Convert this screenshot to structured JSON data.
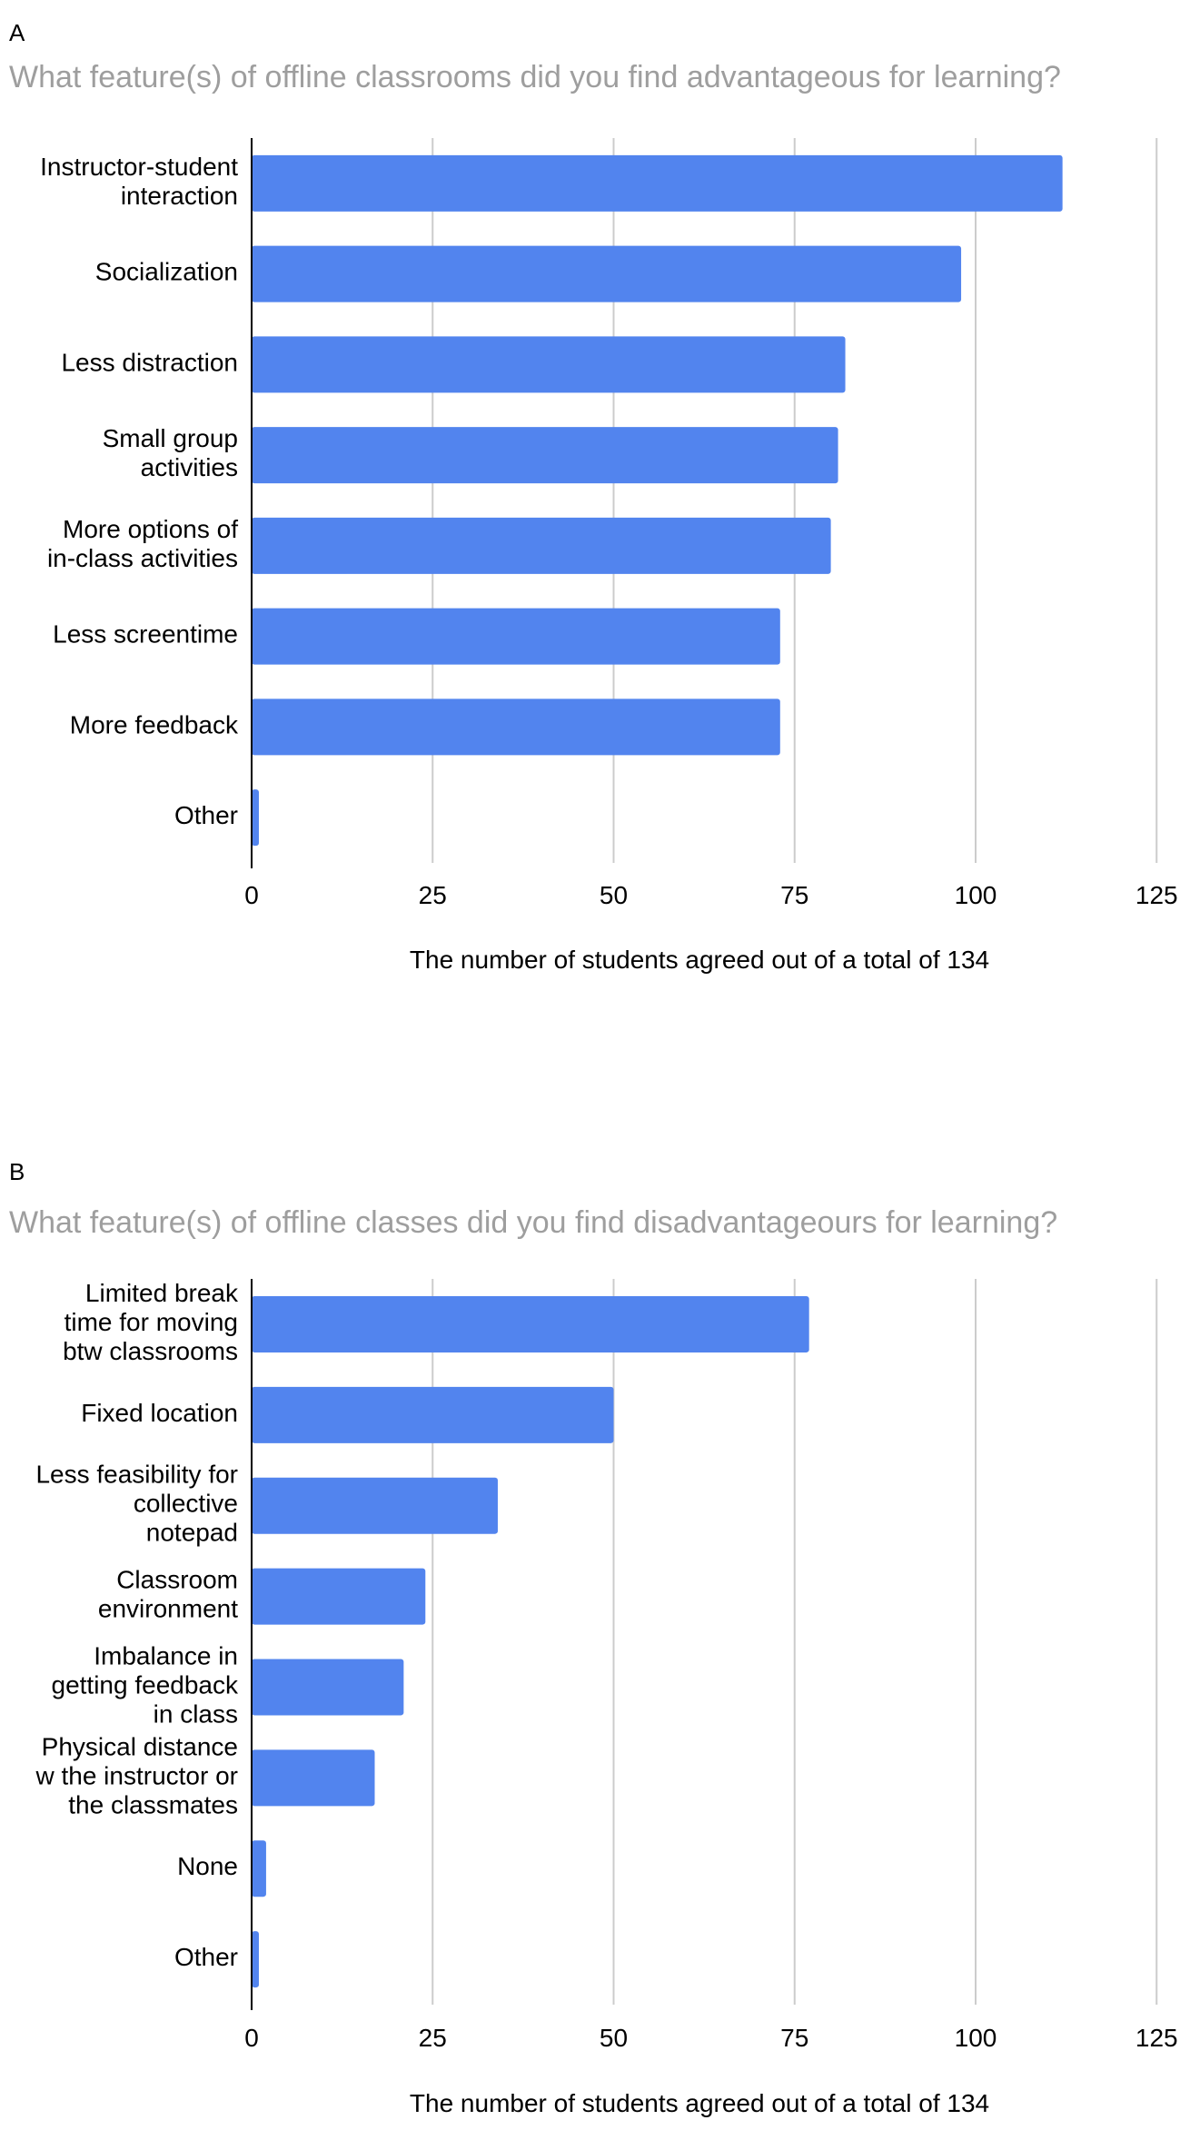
{
  "chart_data": [
    {
      "type": "bar",
      "orientation": "horizontal",
      "panel": "A",
      "title": "What feature(s) of offline classrooms did you find advantageous for learning?",
      "categories": [
        [
          "Instructor-student",
          "interaction"
        ],
        [
          "Socialization"
        ],
        [
          "Less distraction"
        ],
        [
          "Small group",
          "activities"
        ],
        [
          "More options of",
          "in-class activities"
        ],
        [
          "Less screentime"
        ],
        [
          "More feedback"
        ],
        [
          "Other"
        ]
      ],
      "values": [
        112,
        98,
        82,
        81,
        80,
        73,
        73,
        1
      ],
      "xlabel": "The number of students agreed out of a total of 134",
      "ylabel": "",
      "xlim": [
        0,
        125
      ],
      "ticks": [
        0,
        25,
        50,
        75,
        100,
        125
      ],
      "grid": true,
      "color": "#5284ee"
    },
    {
      "type": "bar",
      "orientation": "horizontal",
      "panel": "B",
      "title": "What feature(s) of offline classes did you find disadvantageours for learning?",
      "categories": [
        [
          "Limited break",
          "time for moving",
          "btw classrooms"
        ],
        [
          "Fixed location"
        ],
        [
          "Less feasibility for",
          "collective",
          "notepad"
        ],
        [
          "Classroom",
          "environment"
        ],
        [
          "Imbalance in",
          "getting feedback",
          "in class"
        ],
        [
          "Physical distance",
          "w the instructor or",
          "the classmates"
        ],
        [
          "None"
        ],
        [
          "Other"
        ]
      ],
      "values": [
        77,
        50,
        34,
        24,
        21,
        17,
        2,
        1
      ],
      "xlabel": "The number of students agreed out of a total of 134",
      "ylabel": "",
      "xlim": [
        0,
        125
      ],
      "ticks": [
        0,
        25,
        50,
        75,
        100,
        125
      ],
      "grid": true,
      "color": "#5284ee"
    }
  ]
}
